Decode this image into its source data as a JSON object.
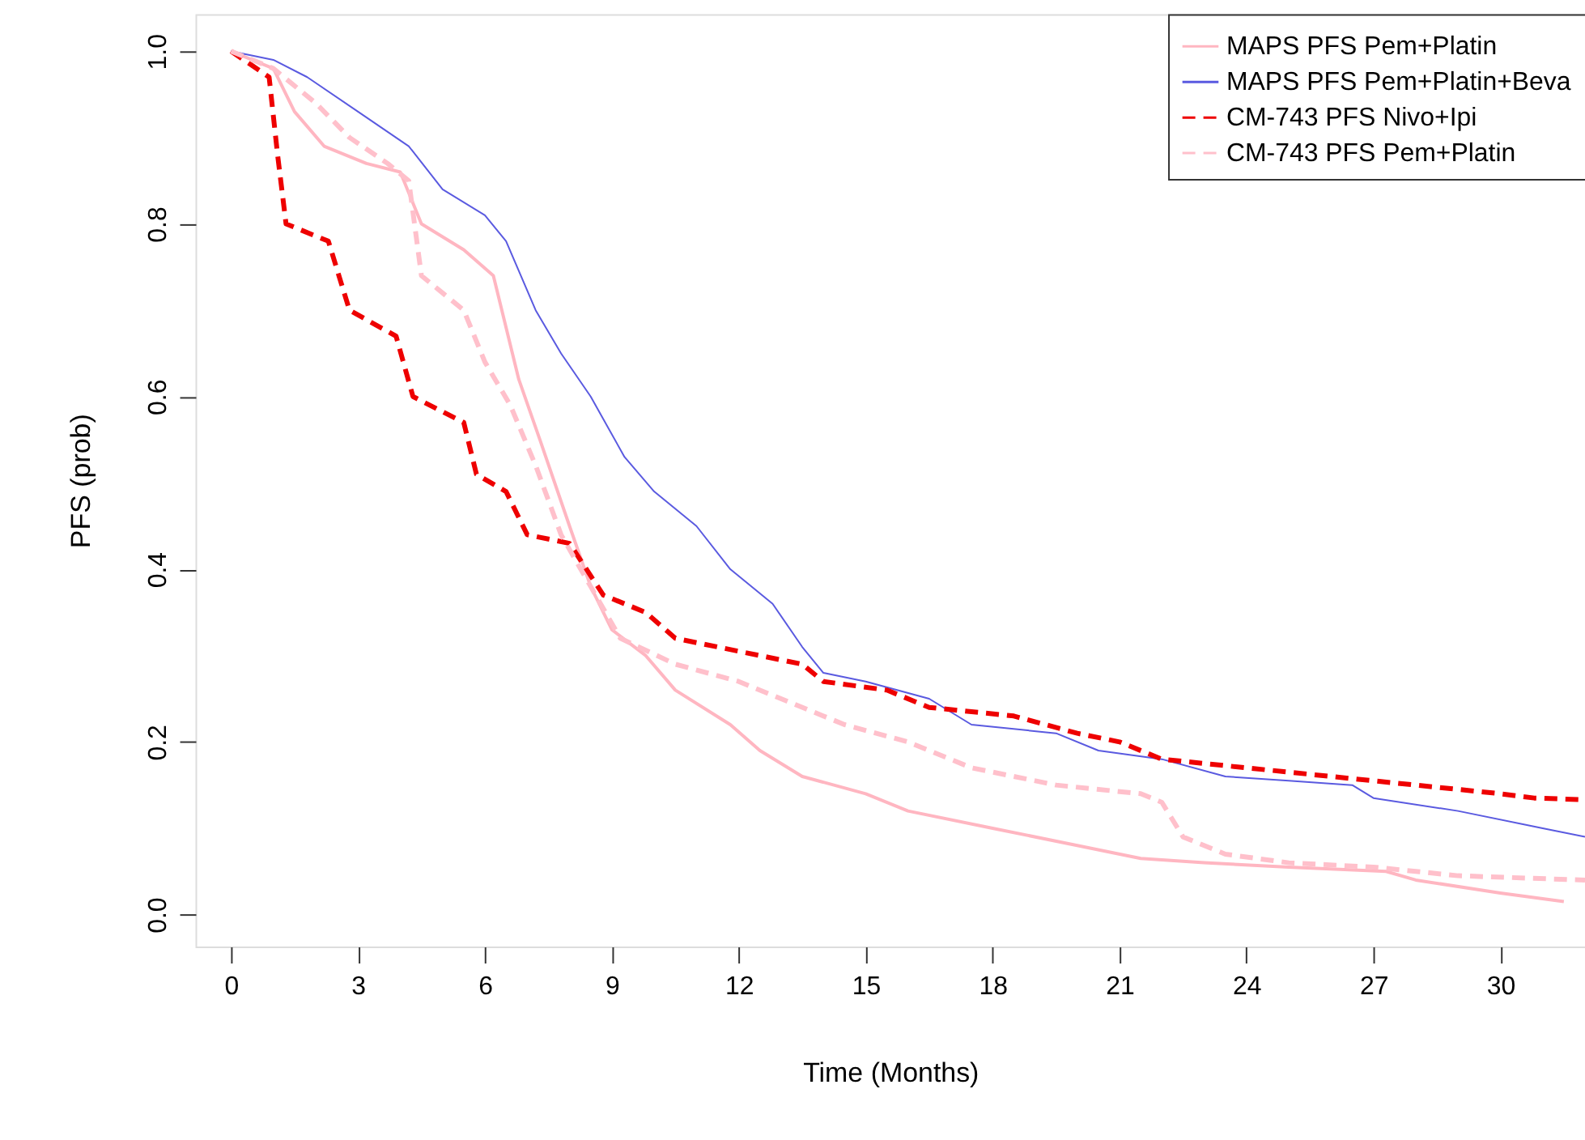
{
  "chart_data": {
    "type": "line",
    "xlabel": "Time (Months)",
    "ylabel": "PFS (prob)",
    "xlim": [
      -0.84,
      32
    ],
    "ylim": [
      -0.037,
      1.043
    ],
    "xticks": [
      0,
      3,
      6,
      9,
      12,
      15,
      18,
      21,
      24,
      27,
      30
    ],
    "yticks": [
      {
        "value": 0,
        "label": "0.0"
      },
      {
        "value": 0.2,
        "label": "0.2"
      },
      {
        "value": 0.4,
        "label": "0.4"
      },
      {
        "value": 0.6,
        "label": "0.6"
      },
      {
        "value": 0.8,
        "label": "0.8"
      },
      {
        "value": 1,
        "label": "1.0"
      }
    ],
    "grid": false,
    "legend": "top right",
    "marker": "none",
    "series": [
      {
        "name": "MAPS PFS Pem+Platin",
        "color": "#ffb6c1",
        "line_style": "solid",
        "x": [
          0,
          1,
          1.5,
          2.2,
          3.2,
          4,
          4.5,
          5.5,
          6.2,
          6.8,
          7.3,
          8,
          8.5,
          9,
          9.8,
          10.5,
          11.8,
          12.5,
          13.5,
          15,
          16,
          18,
          20,
          21.5,
          23,
          25,
          27.3,
          28,
          30,
          31.5
        ],
        "values": [
          1,
          0.98,
          0.93,
          0.89,
          0.87,
          0.86,
          0.8,
          0.77,
          0.74,
          0.62,
          0.55,
          0.45,
          0.38,
          0.33,
          0.3,
          0.26,
          0.22,
          0.19,
          0.16,
          0.14,
          0.12,
          0.1,
          0.08,
          0.065,
          0.06,
          0.055,
          0.05,
          0.04,
          0.025,
          0.015
        ]
      },
      {
        "name": "MAPS PFS Pem+Platin+Beva",
        "color": "#5a5ae0",
        "line_style": "solid",
        "x": [
          0,
          1,
          1.8,
          3,
          4.2,
          5,
          6,
          6.5,
          7.2,
          7.8,
          8.5,
          9.3,
          10,
          11,
          11.8,
          12.8,
          13.5,
          14,
          15,
          16.5,
          17.5,
          19.5,
          20.5,
          22,
          23.5,
          25,
          26.5,
          27,
          29,
          31,
          32
        ],
        "values": [
          1,
          0.99,
          0.97,
          0.93,
          0.89,
          0.84,
          0.81,
          0.78,
          0.7,
          0.65,
          0.6,
          0.53,
          0.49,
          0.45,
          0.4,
          0.36,
          0.31,
          0.28,
          0.27,
          0.25,
          0.22,
          0.21,
          0.19,
          0.18,
          0.16,
          0.155,
          0.15,
          0.135,
          0.12,
          0.1,
          0.09
        ]
      },
      {
        "name": "CM-743 PFS Nivo+Ipi",
        "color": "#ee0000",
        "line_style": "dashed",
        "x": [
          0,
          0.9,
          1.1,
          1.3,
          2.3,
          2.8,
          3.9,
          4.3,
          5.5,
          5.8,
          6.5,
          7,
          8,
          8.8,
          9.8,
          10.5,
          12.5,
          13.5,
          14,
          15.5,
          16.5,
          18.5,
          20,
          21,
          22,
          24,
          26,
          28,
          30,
          30.8,
          32
        ],
        "values": [
          1,
          0.97,
          0.88,
          0.8,
          0.78,
          0.7,
          0.67,
          0.6,
          0.57,
          0.51,
          0.49,
          0.44,
          0.43,
          0.37,
          0.35,
          0.32,
          0.3,
          0.29,
          0.27,
          0.26,
          0.24,
          0.23,
          0.21,
          0.2,
          0.18,
          0.17,
          0.16,
          0.15,
          0.14,
          0.135,
          0.133
        ]
      },
      {
        "name": "CM-743 PFS Pem+Platin",
        "color": "#ffc0cb",
        "line_style": "dashed",
        "x": [
          0,
          1,
          2,
          2.8,
          3.7,
          4.2,
          4.5,
          5.5,
          6,
          6.6,
          7.2,
          7.8,
          8.5,
          9.2,
          10.5,
          12,
          13,
          14.5,
          16,
          17.5,
          19.5,
          21.5,
          22,
          22.5,
          23.5,
          25,
          27,
          29,
          32
        ],
        "values": [
          1,
          0.98,
          0.94,
          0.9,
          0.87,
          0.85,
          0.74,
          0.7,
          0.64,
          0.59,
          0.52,
          0.44,
          0.38,
          0.32,
          0.29,
          0.27,
          0.25,
          0.22,
          0.2,
          0.17,
          0.15,
          0.14,
          0.13,
          0.09,
          0.07,
          0.06,
          0.055,
          0.045,
          0.04
        ]
      }
    ]
  }
}
